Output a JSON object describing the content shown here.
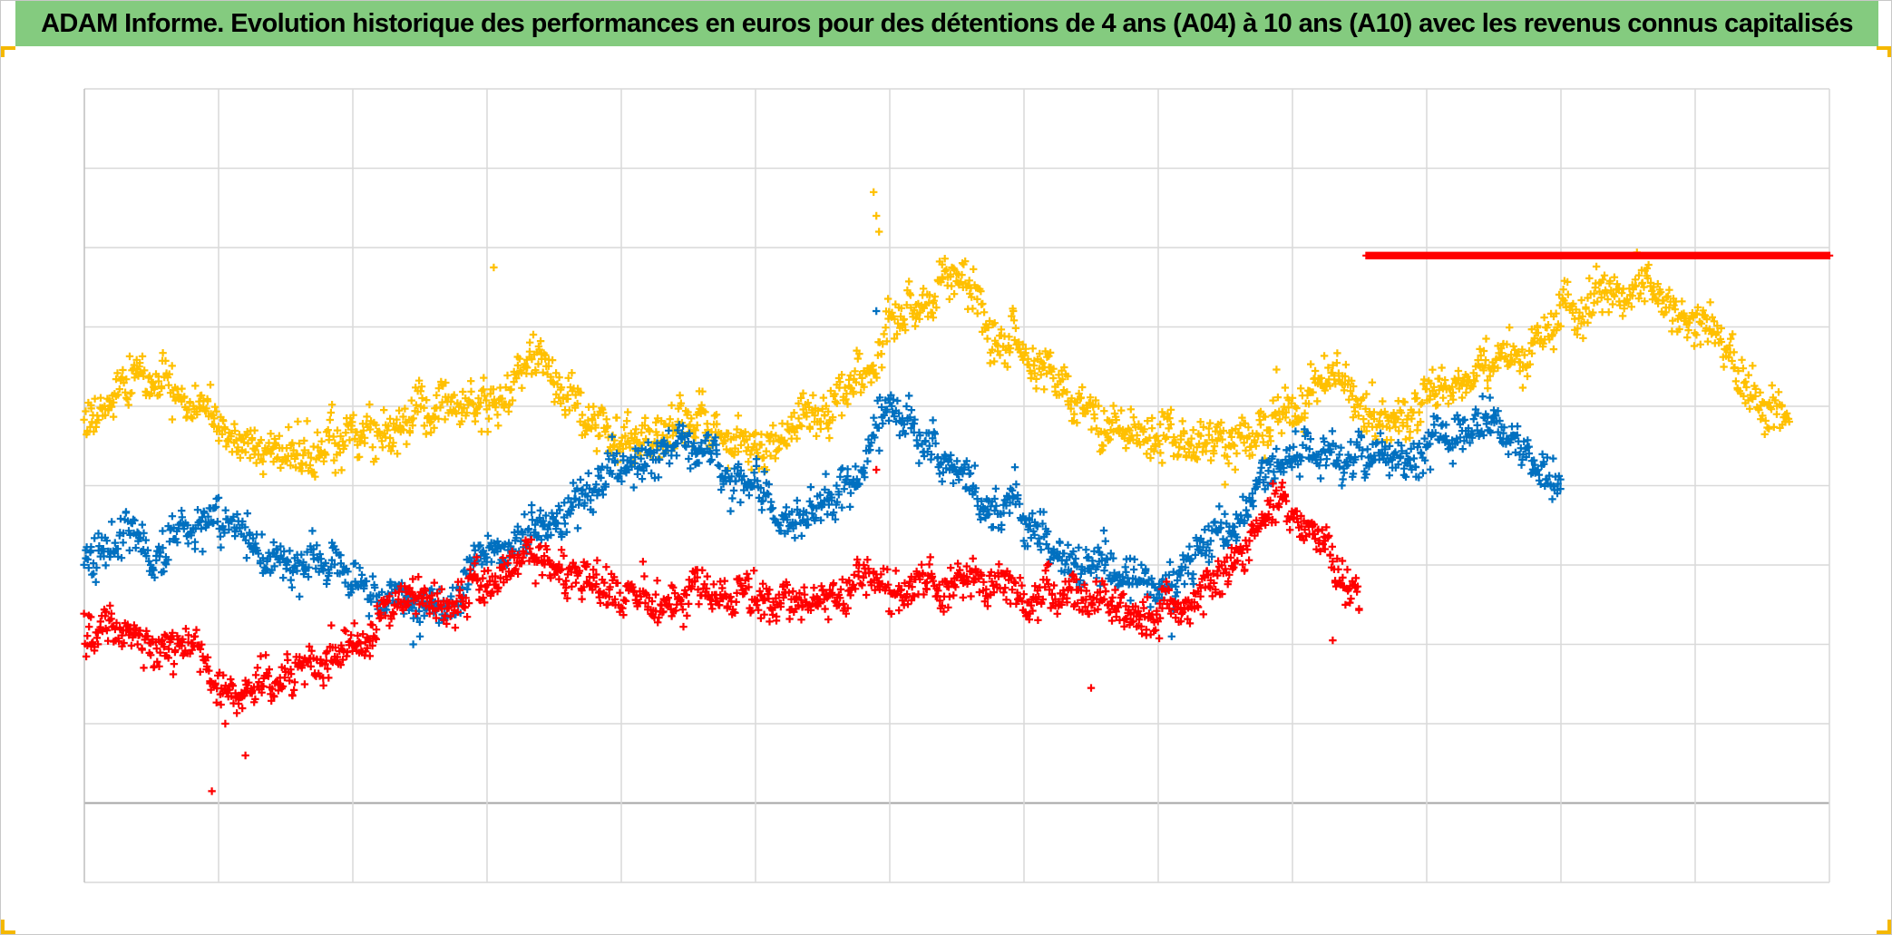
{
  "title": "ADAM Informe. Evolution historique des performances en euros pour des détentions de 4 ans (A04) à 10 ans (A10) avec les revenus connus capitalisés",
  "colors": {
    "title_bar": "#84cb7f",
    "corner_accent": "#f5b800",
    "grid": "#d9d9d9",
    "axis": "#bfbfbf",
    "baseline": "#a6a6a6"
  },
  "chart_data": {
    "type": "scatter",
    "title": "ADAM Informe. Evolution historique des performances en euros pour des détentions de 4 ans (A04) à 10 ans (A10) avec les revenus connus capitalisés",
    "xlabel": "",
    "ylabel": "",
    "xlim": [
      0,
      13
    ],
    "ylim": [
      -1,
      9
    ],
    "x_gridlines": 13,
    "y_gridlines": 10,
    "baseline_y": 0,
    "grid": true,
    "legend": "none",
    "marker": "+",
    "series": [
      {
        "color": "#ffc000",
        "start": 0,
        "end": 12.7,
        "seed": 11,
        "noise": 0.17,
        "points": 1900,
        "knots": [
          [
            0.0,
            4.95
          ],
          [
            0.5,
            5.3
          ],
          [
            0.9,
            4.9
          ],
          [
            1.2,
            4.5
          ],
          [
            1.6,
            4.45
          ],
          [
            2.0,
            4.6
          ],
          [
            2.5,
            4.85
          ],
          [
            3.0,
            5.0
          ],
          [
            3.4,
            5.6
          ],
          [
            3.7,
            5.0
          ],
          [
            4.0,
            4.45
          ],
          [
            4.5,
            4.8
          ],
          [
            5.0,
            4.45
          ],
          [
            5.4,
            4.9
          ],
          [
            5.8,
            5.4
          ],
          [
            6.1,
            6.2
          ],
          [
            6.5,
            6.6
          ],
          [
            6.8,
            6.0
          ],
          [
            7.1,
            5.5
          ],
          [
            7.5,
            4.9
          ],
          [
            8.0,
            4.7
          ],
          [
            8.5,
            4.5
          ],
          [
            8.9,
            4.85
          ],
          [
            9.3,
            5.3
          ],
          [
            9.7,
            4.7
          ],
          [
            10.2,
            5.3
          ],
          [
            10.7,
            5.75
          ],
          [
            11.1,
            6.2
          ],
          [
            11.5,
            6.5
          ],
          [
            12.0,
            6.1
          ],
          [
            12.4,
            5.2
          ],
          [
            12.7,
            4.7
          ]
        ],
        "spikes": [
          [
            5.88,
            7.7
          ],
          [
            5.9,
            7.4
          ],
          [
            5.92,
            7.2
          ],
          [
            3.05,
            6.75
          ],
          [
            5.55,
            4.6
          ]
        ]
      },
      {
        "color": "#0070c0",
        "start": 0,
        "end": 11.0,
        "seed": 23,
        "noise": 0.15,
        "points": 1650,
        "knots": [
          [
            0.0,
            3.1
          ],
          [
            0.3,
            3.4
          ],
          [
            0.5,
            3.1
          ],
          [
            0.9,
            3.6
          ],
          [
            1.3,
            3.2
          ],
          [
            1.8,
            3.0
          ],
          [
            2.3,
            2.6
          ],
          [
            2.7,
            2.5
          ],
          [
            3.0,
            3.1
          ],
          [
            3.5,
            3.6
          ],
          [
            4.0,
            4.2
          ],
          [
            4.5,
            4.5
          ],
          [
            4.9,
            4.1
          ],
          [
            5.3,
            3.5
          ],
          [
            5.7,
            4.0
          ],
          [
            6.0,
            4.9
          ],
          [
            6.4,
            4.3
          ],
          [
            6.8,
            3.8
          ],
          [
            7.2,
            3.2
          ],
          [
            7.6,
            2.9
          ],
          [
            8.0,
            2.7
          ],
          [
            8.5,
            3.4
          ],
          [
            9.0,
            4.4
          ],
          [
            9.5,
            4.3
          ],
          [
            9.9,
            4.5
          ],
          [
            10.4,
            4.75
          ],
          [
            10.8,
            4.4
          ],
          [
            11.0,
            4.1
          ]
        ],
        "spikes": [
          [
            2.45,
            2.0
          ],
          [
            2.5,
            2.1
          ],
          [
            5.9,
            6.2
          ],
          [
            8.1,
            2.1
          ],
          [
            10.5,
            4.95
          ]
        ]
      },
      {
        "color": "#ff0000",
        "start": 0,
        "end": 9.5,
        "seed": 37,
        "noise": 0.14,
        "points": 1450,
        "knots": [
          [
            0.0,
            2.1
          ],
          [
            0.3,
            2.2
          ],
          [
            0.5,
            1.8
          ],
          [
            0.8,
            1.9
          ],
          [
            1.1,
            1.4
          ],
          [
            1.4,
            1.45
          ],
          [
            1.7,
            1.7
          ],
          [
            2.0,
            1.9
          ],
          [
            2.4,
            2.7
          ],
          [
            2.8,
            2.6
          ],
          [
            3.0,
            2.7
          ],
          [
            3.3,
            3.2
          ],
          [
            3.5,
            3.05
          ],
          [
            3.8,
            2.7
          ],
          [
            4.2,
            2.55
          ],
          [
            4.6,
            2.6
          ],
          [
            4.9,
            2.6
          ],
          [
            5.2,
            2.5
          ],
          [
            5.5,
            2.6
          ],
          [
            5.8,
            2.9
          ],
          [
            6.2,
            2.7
          ],
          [
            6.6,
            2.85
          ],
          [
            7.0,
            2.6
          ],
          [
            7.4,
            2.5
          ],
          [
            7.8,
            2.4
          ],
          [
            8.2,
            2.5
          ],
          [
            8.5,
            2.9
          ],
          [
            8.9,
            3.8
          ],
          [
            9.1,
            3.5
          ],
          [
            9.5,
            2.6
          ]
        ],
        "spikes": [
          [
            0.95,
            0.15
          ],
          [
            1.05,
            1.0
          ],
          [
            1.2,
            0.6
          ],
          [
            7.5,
            1.45
          ],
          [
            5.9,
            4.2
          ],
          [
            9.3,
            2.05
          ]
        ]
      },
      {
        "color": "#ff0000",
        "type": "flat",
        "start": 9.55,
        "end": 13.0,
        "y": 6.9,
        "points": 260
      }
    ]
  }
}
